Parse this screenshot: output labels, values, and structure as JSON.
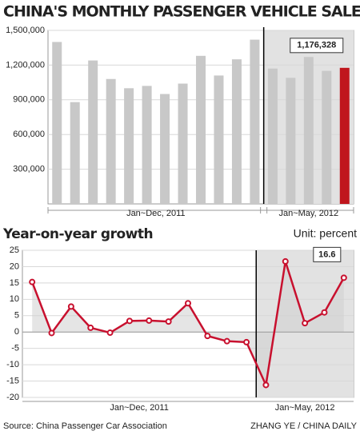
{
  "chart_data": [
    {
      "type": "bar",
      "title": "CHINA'S MONTHLY PASSENGER VEHICLE SALES",
      "categories": [
        null,
        null,
        null,
        null,
        null,
        null,
        null,
        null,
        null,
        null,
        null,
        null,
        null,
        null,
        null,
        null,
        null
      ],
      "values": [
        1400000,
        880000,
        1240000,
        1080000,
        1000000,
        1020000,
        950000,
        1040000,
        1280000,
        1110000,
        1250000,
        1420000,
        1170000,
        1090000,
        1270000,
        1150000,
        1176328
      ],
      "value_labels": [
        null,
        null,
        null,
        null,
        null,
        null,
        null,
        null,
        null,
        null,
        null,
        null,
        null,
        null,
        null,
        null,
        "1,176,328"
      ],
      "color": "#c8c8c8",
      "highlight_color": "#c0161d",
      "periods": [
        "Jan~Dec, 2011",
        "Jan~May, 2012"
      ],
      "ylim": [
        0,
        1500000
      ],
      "yticks": [
        {
          "value": 300000,
          "label": "300,000"
        },
        {
          "value": 600000,
          "label": "600,000"
        },
        {
          "value": 900000,
          "label": "900,000"
        },
        {
          "value": 1200000,
          "label": "1,200,000"
        },
        {
          "value": 1500000,
          "label": "1,500,000"
        }
      ],
      "grid": true
    },
    {
      "type": "line",
      "title": "Year-on-year growth",
      "unit": "Unit: percent",
      "categories": [
        null,
        null,
        null,
        null,
        null,
        null,
        null,
        null,
        null,
        null,
        null,
        null,
        null,
        null,
        null,
        null,
        null
      ],
      "series": [
        {
          "name": null,
          "color": "#c8102e",
          "values": [
            15.3,
            -0.3,
            7.8,
            1.3,
            -0.2,
            3.4,
            3.5,
            3.2,
            8.8,
            -1.2,
            -2.8,
            -3.1,
            -16.2,
            21.6,
            2.7,
            6.0,
            16.6
          ]
        }
      ],
      "periods": [
        "Jan~Dec, 2011",
        "Jan~May, 2012"
      ],
      "ylim": [
        -20,
        25
      ],
      "yticks": [
        -20,
        -15,
        -10,
        -5,
        0,
        5,
        10,
        15,
        20,
        25
      ],
      "grid": true
    }
  ],
  "source": "Source: China Passenger Car Association",
  "credit": "ZHANG YE / CHINA DAILY"
}
